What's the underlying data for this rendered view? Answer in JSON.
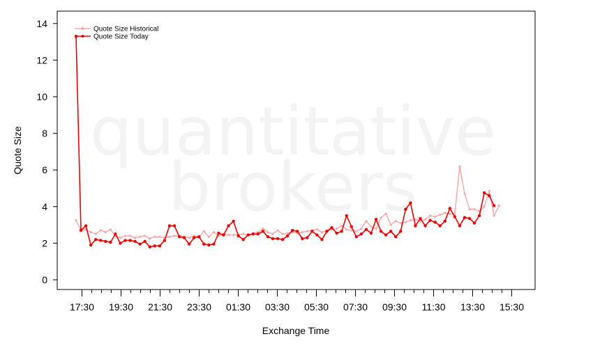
{
  "watermark": {
    "line1": "quantitative",
    "line2": "brokers"
  },
  "chart_data": {
    "type": "line",
    "xlabel": "Exchange Time",
    "ylabel": "Quote Size",
    "ylim": [
      0,
      14
    ],
    "yticks": [
      0,
      2,
      4,
      6,
      8,
      10,
      12,
      14
    ],
    "x_tick_labels": [
      "17:30",
      "19:30",
      "21:30",
      "23:30",
      "01:30",
      "03:30",
      "05:30",
      "07:30",
      "09:30",
      "11:30",
      "13:30",
      "15:30"
    ],
    "x_minor_per_major": 4,
    "grid": false,
    "legend_position": "top-left",
    "series": [
      {
        "name": "Quote Size Historical",
        "color": "#f7a8a8",
        "values": [
          3.25,
          2.7,
          2.75,
          2.6,
          2.5,
          2.7,
          2.6,
          2.75,
          2.4,
          2.3,
          2.4,
          2.4,
          2.3,
          2.35,
          2.4,
          2.25,
          2.35,
          2.35,
          2.3,
          2.35,
          2.4,
          2.4,
          2.35,
          2.3,
          2.4,
          2.35,
          2.65,
          2.35,
          2.6,
          2.4,
          2.5,
          2.45,
          2.45,
          2.45,
          2.5,
          2.45,
          2.55,
          2.6,
          2.8,
          2.6,
          2.5,
          2.7,
          2.5,
          2.55,
          2.6,
          2.55,
          2.6,
          2.65,
          2.7,
          2.75,
          2.6,
          2.7,
          2.75,
          2.8,
          2.95,
          2.75,
          2.7,
          2.65,
          2.8,
          3.2,
          2.9,
          2.8,
          3.4,
          3.6,
          3.0,
          3.2,
          3.1,
          3.15,
          3.25,
          3.3,
          3.2,
          3.3,
          3.5,
          3.45,
          3.55,
          3.65,
          3.6,
          3.6,
          6.2,
          4.7,
          3.85,
          3.85,
          3.75,
          4.0,
          4.85,
          3.5,
          4.05
        ]
      },
      {
        "name": "Quote Size Today",
        "color": "#ee0000",
        "values": [
          13.3,
          2.7,
          2.95,
          1.9,
          2.2,
          2.15,
          2.1,
          2.05,
          2.5,
          2.0,
          2.15,
          2.15,
          2.1,
          1.95,
          2.1,
          1.8,
          1.85,
          1.85,
          2.15,
          2.95,
          2.95,
          2.35,
          2.3,
          1.95,
          2.3,
          2.35,
          1.95,
          1.9,
          1.95,
          2.55,
          2.45,
          2.95,
          3.2,
          2.4,
          2.2,
          2.45,
          2.5,
          2.5,
          2.65,
          2.35,
          2.25,
          2.25,
          2.2,
          2.4,
          2.7,
          2.65,
          2.25,
          2.3,
          2.65,
          2.45,
          2.2,
          2.65,
          2.85,
          2.55,
          2.65,
          3.5,
          2.9,
          2.35,
          2.5,
          2.75,
          2.55,
          3.3,
          2.65,
          2.45,
          2.65,
          2.35,
          2.65,
          3.85,
          4.2,
          2.95,
          3.35,
          2.95,
          3.25,
          3.15,
          2.95,
          3.2,
          3.9,
          3.45,
          2.95,
          3.4,
          3.35,
          3.1,
          3.5,
          4.75,
          4.6,
          4.05
        ]
      }
    ]
  }
}
